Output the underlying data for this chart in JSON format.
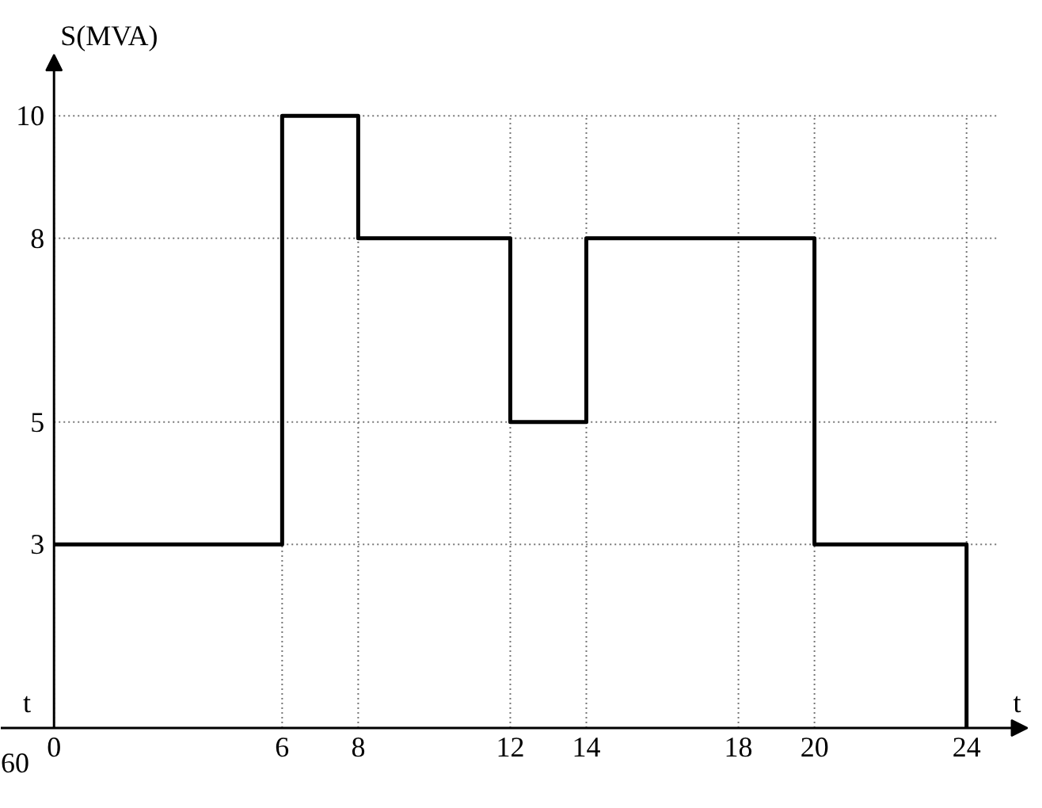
{
  "chart_data": {
    "type": "step",
    "xlabel": "t",
    "ylabel": "S(MVA)",
    "x": [
      0,
      6,
      8,
      12,
      14,
      20,
      24
    ],
    "series": [
      {
        "color": "#000000",
        "values": [
          3,
          10,
          8,
          5,
          8,
          3,
          0
        ]
      }
    ],
    "xlim": [
      -1.4,
      25.6
    ],
    "ylim": [
      0,
      11
    ],
    "xticks": [
      0,
      6,
      8,
      12,
      14,
      18,
      20,
      24
    ],
    "yticks": [
      3,
      5,
      8,
      10
    ],
    "grid": true,
    "line_style": "solid",
    "marker": "none",
    "annotations": [
      "t",
      "60"
    ]
  }
}
